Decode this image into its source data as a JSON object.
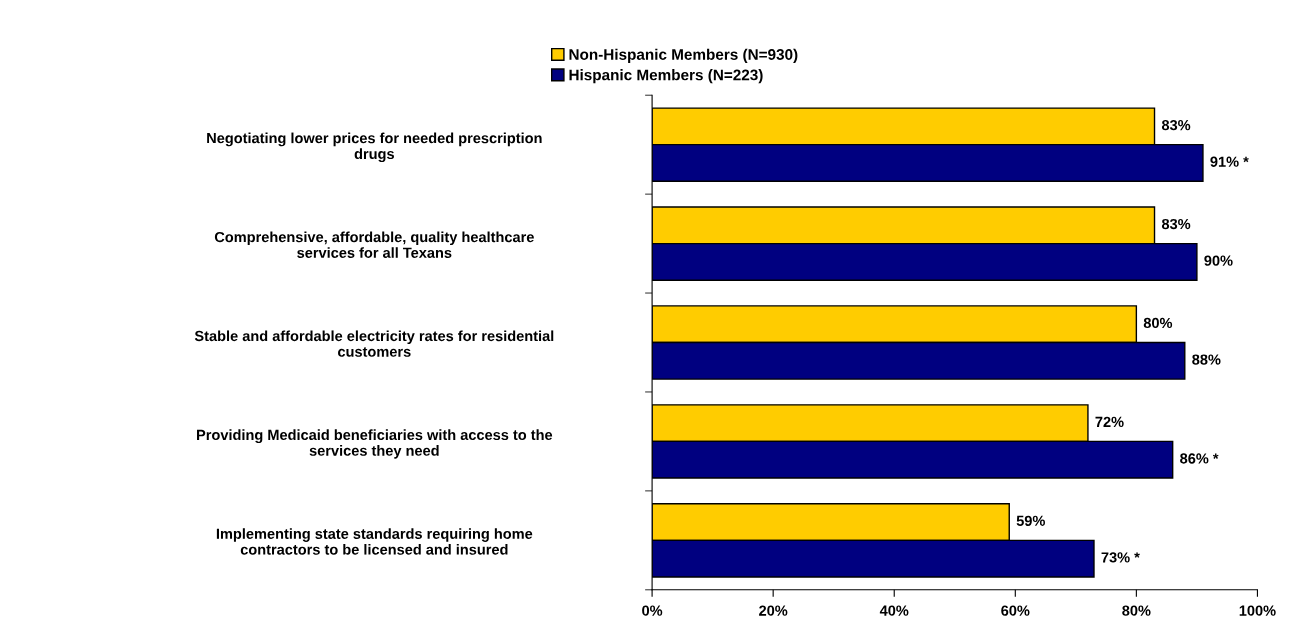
{
  "chart_data": {
    "type": "bar",
    "orientation": "horizontal",
    "categories": [
      "Negotiating lower prices for needed prescription\ndrugs",
      "Comprehensive, affordable, quality healthcare\nservices for all Texans",
      "Stable and affordable electricity rates for residential\ncustomers",
      "Providing Medicaid beneficiaries with access to the\nservices they need",
      "Implementing state standards requiring home\ncontractors to be licensed and insured"
    ],
    "series": [
      {
        "name": "Non-Hispanic Members (N=930)",
        "color": "#ffcc00",
        "values": [
          83,
          83,
          80,
          72,
          59
        ],
        "value_labels": [
          "83%",
          "83%",
          "80%",
          "72%",
          "59%"
        ]
      },
      {
        "name": "Hispanic Members (N=223)",
        "color": "#000080",
        "values": [
          91,
          90,
          88,
          86,
          73
        ],
        "value_labels": [
          "91% *",
          "90%",
          "88%",
          "86% *",
          "73% *"
        ]
      }
    ],
    "xlim": [
      0,
      100
    ],
    "xticks": [
      {
        "value": 0,
        "label": "0%"
      },
      {
        "value": 20,
        "label": "20%"
      },
      {
        "value": 40,
        "label": "40%"
      },
      {
        "value": 60,
        "label": "60%"
      },
      {
        "value": 80,
        "label": "80%"
      },
      {
        "value": 100,
        "label": "100%"
      }
    ],
    "legend": "top",
    "grid": false
  }
}
